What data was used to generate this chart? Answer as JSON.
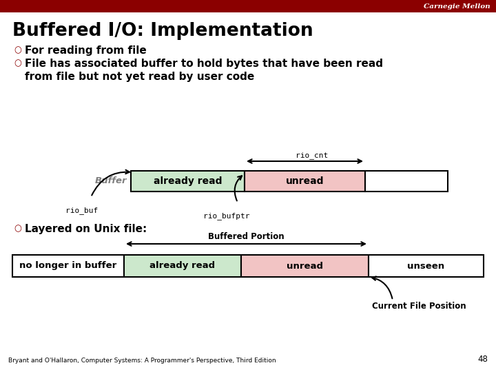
{
  "title": "Buffered I/O: Implementation",
  "header_color": "#8B0000",
  "header_text": "Carnegie Mellon",
  "bg_color": "#FFFFFF",
  "bullet1": "For reading from file",
  "bullet2_line1": "File has associated buffer to hold bytes that have been read",
  "bullet2_line2": "from file but not yet read by user code",
  "bullet3": "Layered on Unix file:",
  "bullet_color": "#8B0000",
  "buffer_label": "Buffer",
  "rio_buf_label": "rio_buf",
  "rio_bufptr_label": "rio_bufptr",
  "rio_cnt_label": "rio_cnt",
  "already_read_label": "already read",
  "unread_label": "unread",
  "color_green": "#cce8cc",
  "color_pink": "#f2c4c4",
  "color_white": "#FFFFFF",
  "color_outline": "#000000",
  "buffered_portion_label": "Buffered Portion",
  "no_longer_label": "no longer in buffer",
  "already_read2_label": "already read",
  "unread2_label": "unread",
  "unseen_label": "unseen",
  "current_file_pos_label": "Current File Position",
  "footer_text": "Bryant and O'Hallaron, Computer Systems: A Programmer's Perspective, Third Edition",
  "page_number": "48"
}
